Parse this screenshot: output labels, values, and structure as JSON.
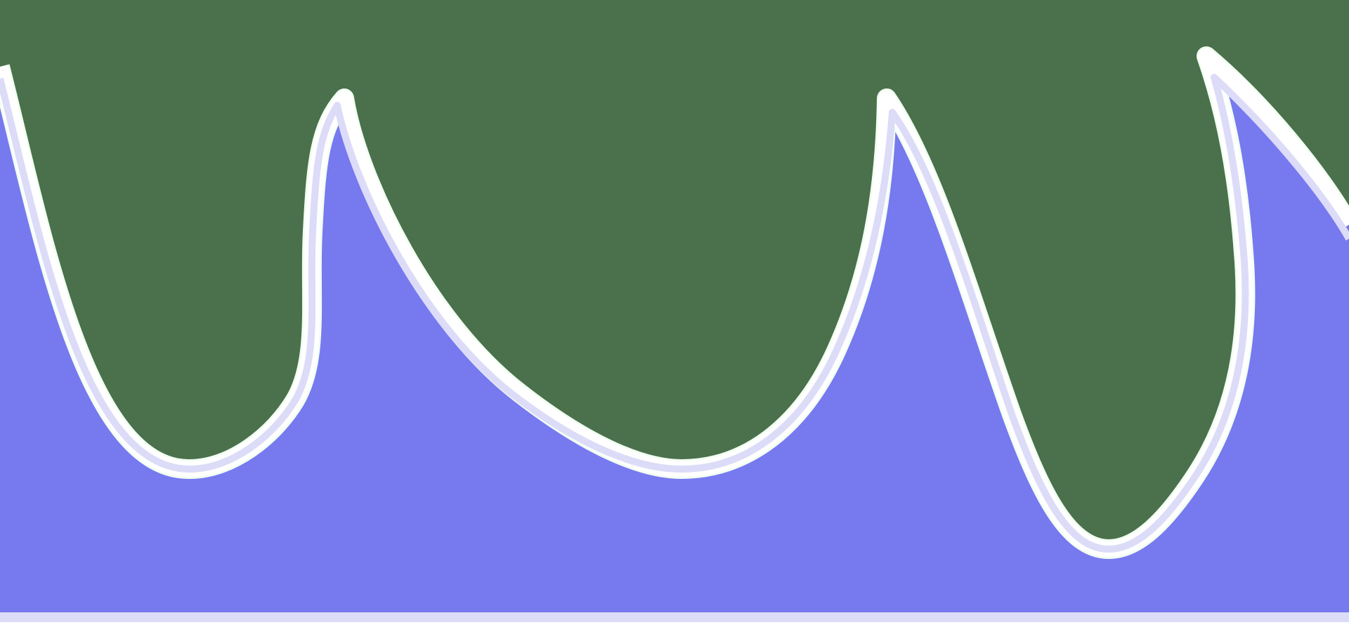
{
  "scene": {
    "kind": "abstract-wave-illustration",
    "colors": {
      "background": "#4a704c",
      "fill": "#7779ef",
      "outline_white": "#ffffff",
      "outline_lavender": "#dcdcf8",
      "outline_halo": "#f0fff0"
    }
  }
}
